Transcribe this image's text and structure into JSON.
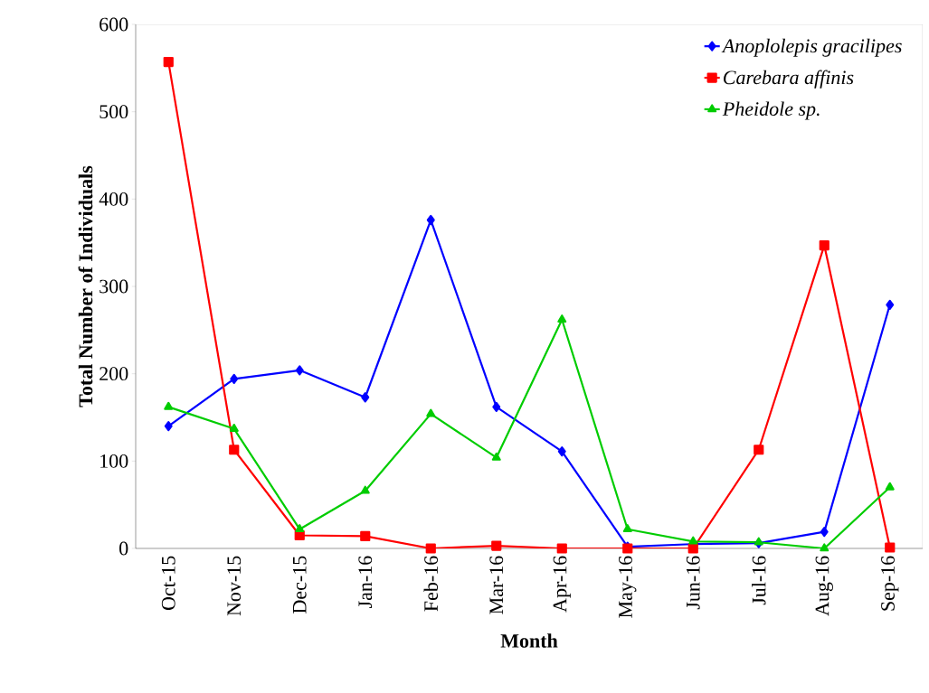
{
  "chart_data": {
    "type": "line",
    "xlabel": "Month",
    "ylabel": "Total Number of Individuals",
    "categories": [
      "Oct-15",
      "Nov-15",
      "Dec-15",
      "Jan-16",
      "Feb-16",
      "Mar-16",
      "Apr-16",
      "May-16",
      "Jun-16",
      "Jul-16",
      "Aug-16",
      "Sep-16"
    ],
    "series": [
      {
        "name": "*Anoplolepis gracilipes*",
        "color": "#0000ff",
        "marker": "diamond",
        "values": [
          140,
          194,
          204,
          173,
          376,
          162,
          111,
          2,
          5,
          6,
          19,
          279
        ]
      },
      {
        "name": "*Carebara affinis*",
        "color": "#ff0000",
        "marker": "square",
        "values": [
          557,
          113,
          15,
          14,
          0,
          3,
          0,
          0,
          0,
          113,
          347,
          1
        ]
      },
      {
        "name": "*Pheidole sp.*",
        "color": "#00cc00",
        "marker": "triangle",
        "values": [
          162,
          137,
          22,
          66,
          154,
          104,
          262,
          22,
          8,
          7,
          0,
          70
        ]
      }
    ],
    "ylim": [
      0,
      600
    ],
    "yticks": [
      0,
      100,
      200,
      300,
      400,
      500,
      600
    ],
    "grid": false,
    "legend": "top right",
    "line_style": "solid"
  }
}
